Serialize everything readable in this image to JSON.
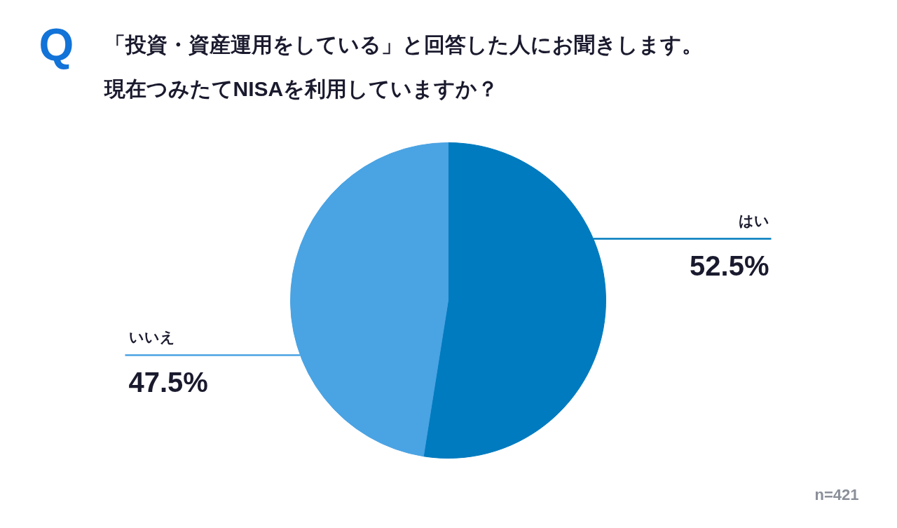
{
  "chart_data": {
    "type": "pie",
    "title": "「投資・資産運用をしている」と回答した人にお聞きします。",
    "subtitle": "現在つみたてNISAを利用していますか？",
    "categories": [
      "はい",
      "いいえ"
    ],
    "values": [
      52.5,
      47.5
    ],
    "value_labels": [
      "52.5%",
      "47.5%"
    ],
    "colors": [
      "#007bbf",
      "#4aa3e3"
    ],
    "annotations": [
      "Q",
      "n=421"
    ]
  }
}
